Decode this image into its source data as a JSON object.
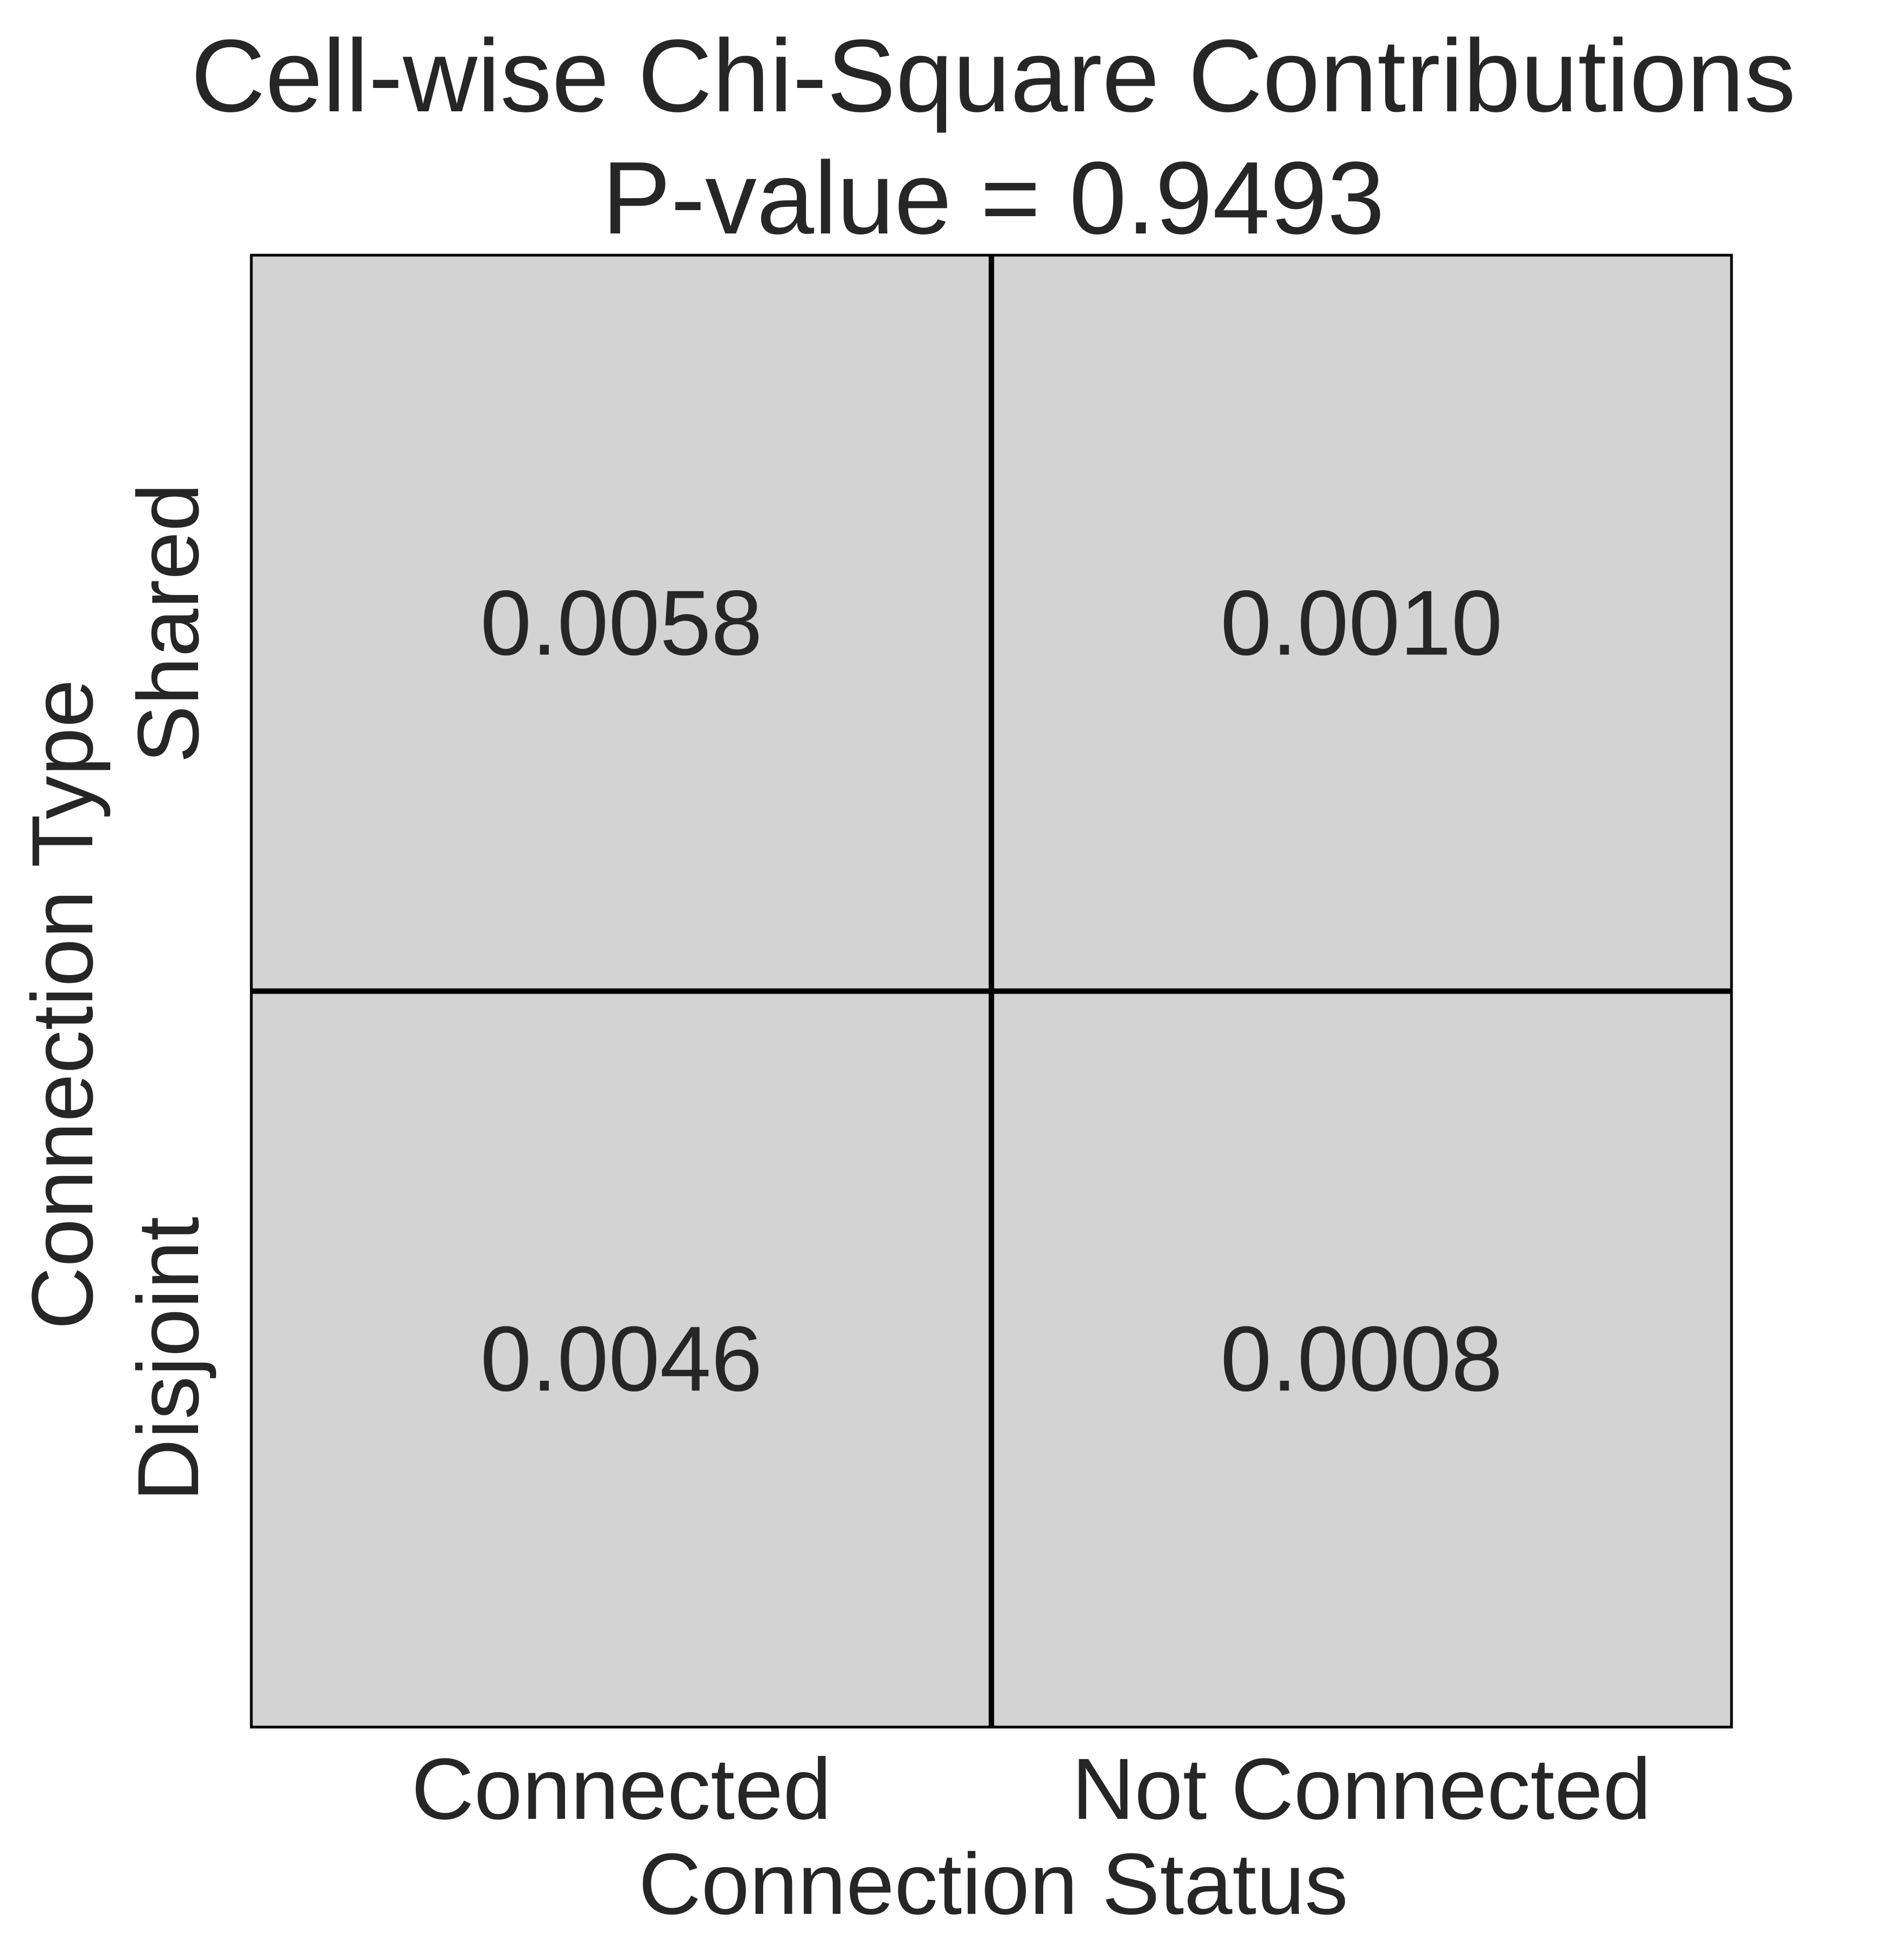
{
  "chart_data": {
    "type": "heatmap",
    "title": "Cell-wise Chi-Square Contributions",
    "subtitle": "P-value = 0.9493",
    "xlabel": "Connection Status",
    "ylabel": "Connection Type",
    "x_categories": [
      "Connected",
      "Not Connected"
    ],
    "y_categories": [
      "Shared",
      "Disjoint"
    ],
    "values": [
      [
        0.0058,
        0.001
      ],
      [
        0.0046,
        0.0008
      ]
    ],
    "cell_labels": [
      [
        "0.0058",
        "0.0010"
      ],
      [
        "0.0046",
        "0.0008"
      ]
    ],
    "cell_color": "#d3d3d3",
    "grid_line_color": "#000000",
    "grid": true,
    "legend": "none"
  }
}
